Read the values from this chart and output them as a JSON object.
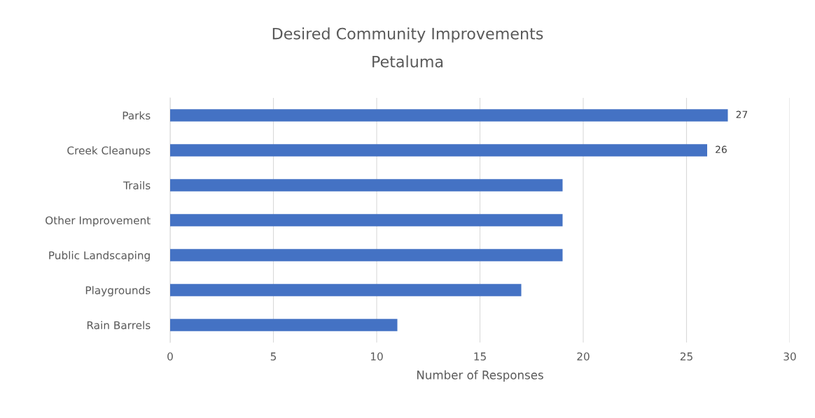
{
  "chart_data": {
    "type": "bar",
    "orientation": "horizontal",
    "title": "Desired Community Improvements",
    "subtitle": "Petaluma",
    "xlabel": "Number of Responses",
    "categories": [
      "Parks",
      "Creek Cleanups",
      "Trails",
      "Other Improvement",
      "Public Landscaping",
      "Playgrounds",
      "Rain Barrels"
    ],
    "values": [
      27,
      26,
      19,
      19,
      19,
      17,
      11
    ],
    "value_labels": [
      "27",
      "26",
      null,
      null,
      null,
      null,
      null
    ],
    "color": "#4472c4",
    "xlim": [
      0,
      30
    ],
    "xticks": [
      0,
      5,
      10,
      15,
      20,
      25,
      30
    ],
    "grid": "x",
    "legend": false
  }
}
